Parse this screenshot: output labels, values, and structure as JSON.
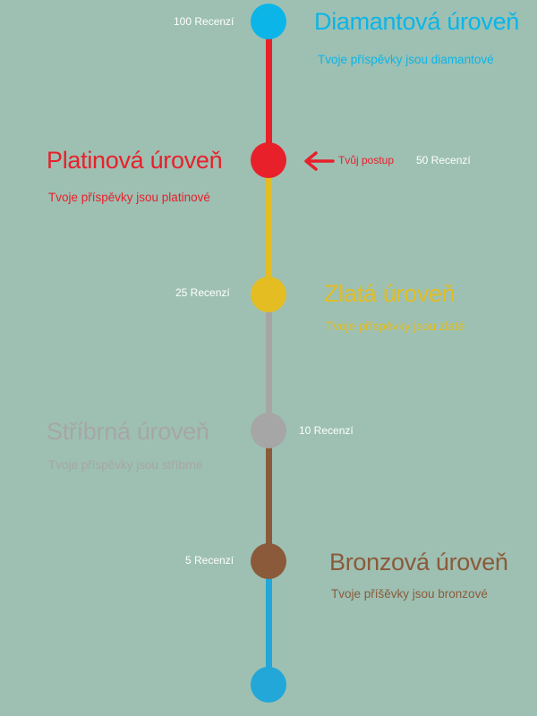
{
  "colors": {
    "background": "#9dc0b3",
    "diamond": "#0bb5e8",
    "platinum": "#e8202a",
    "gold": "#e3bd22",
    "silver": "#a6a6a6",
    "bronze": "#8b5a3a",
    "bottom": "#22a7d8"
  },
  "levels": {
    "diamond": {
      "count": "100 Recenzí",
      "title": "Diamantová úroveň",
      "subtitle": "Tvoje příspěvky jsou diamantové"
    },
    "platinum": {
      "count": "50 Recenzí",
      "title": "Platinová úroveň",
      "subtitle": "Tvoje příspěvky jsou platinové"
    },
    "gold": {
      "count": "25 Recenzí",
      "title": "Zlatá úroveň",
      "subtitle": "Tvoje příspěvky jsou zlaté"
    },
    "silver": {
      "count": "10 Recenzí",
      "title": "Stříbrná úroveň",
      "subtitle": "Tvoje příspěvky jsou stříbrné"
    },
    "bronze": {
      "count": "5 Recenzí",
      "title": "Bronzová úroveň",
      "subtitle": "Tvoje příšěvky  jsou bronzové"
    }
  },
  "progress": {
    "label": "Tvůj postup",
    "icon": "arrow-left-icon"
  }
}
